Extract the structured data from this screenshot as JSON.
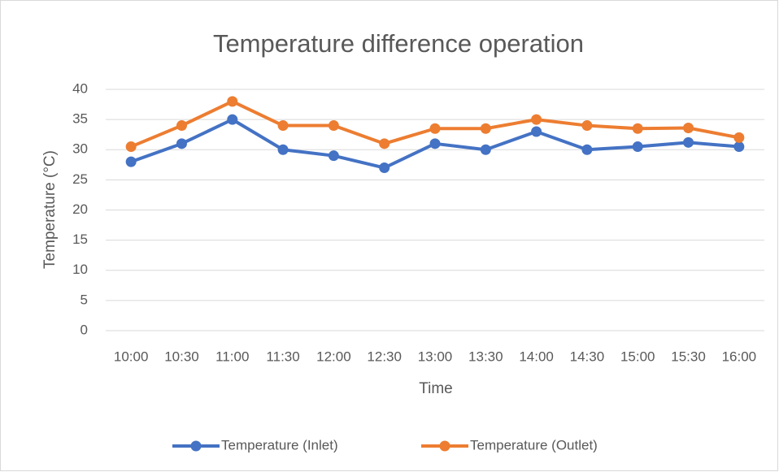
{
  "chart_data": {
    "type": "line",
    "title": "Temperature difference operation",
    "x_label": "Time",
    "y_label": "Temperature (°C)",
    "categories": [
      "10:00",
      "10:30",
      "11:00",
      "11:30",
      "12:00",
      "12:30",
      "13:00",
      "13:30",
      "14:00",
      "14:30",
      "15:00",
      "15:30",
      "16:00"
    ],
    "series": [
      {
        "name": "Temperature (Inlet)",
        "color": "#4472c4",
        "values": [
          28,
          31,
          35,
          30,
          29,
          27,
          31,
          30,
          33,
          30,
          30.5,
          31.2,
          30.5
        ]
      },
      {
        "name": "Temperature (Outlet)",
        "color": "#ed7d31",
        "values": [
          30.5,
          34,
          38,
          34,
          34,
          31,
          33.5,
          33.5,
          35,
          34,
          33.5,
          33.6,
          32
        ]
      }
    ],
    "ylim": [
      0,
      40
    ],
    "yticks": [
      0,
      5,
      10,
      15,
      20,
      25,
      30,
      35,
      40
    ],
    "grid": true,
    "legend": "bottom"
  }
}
